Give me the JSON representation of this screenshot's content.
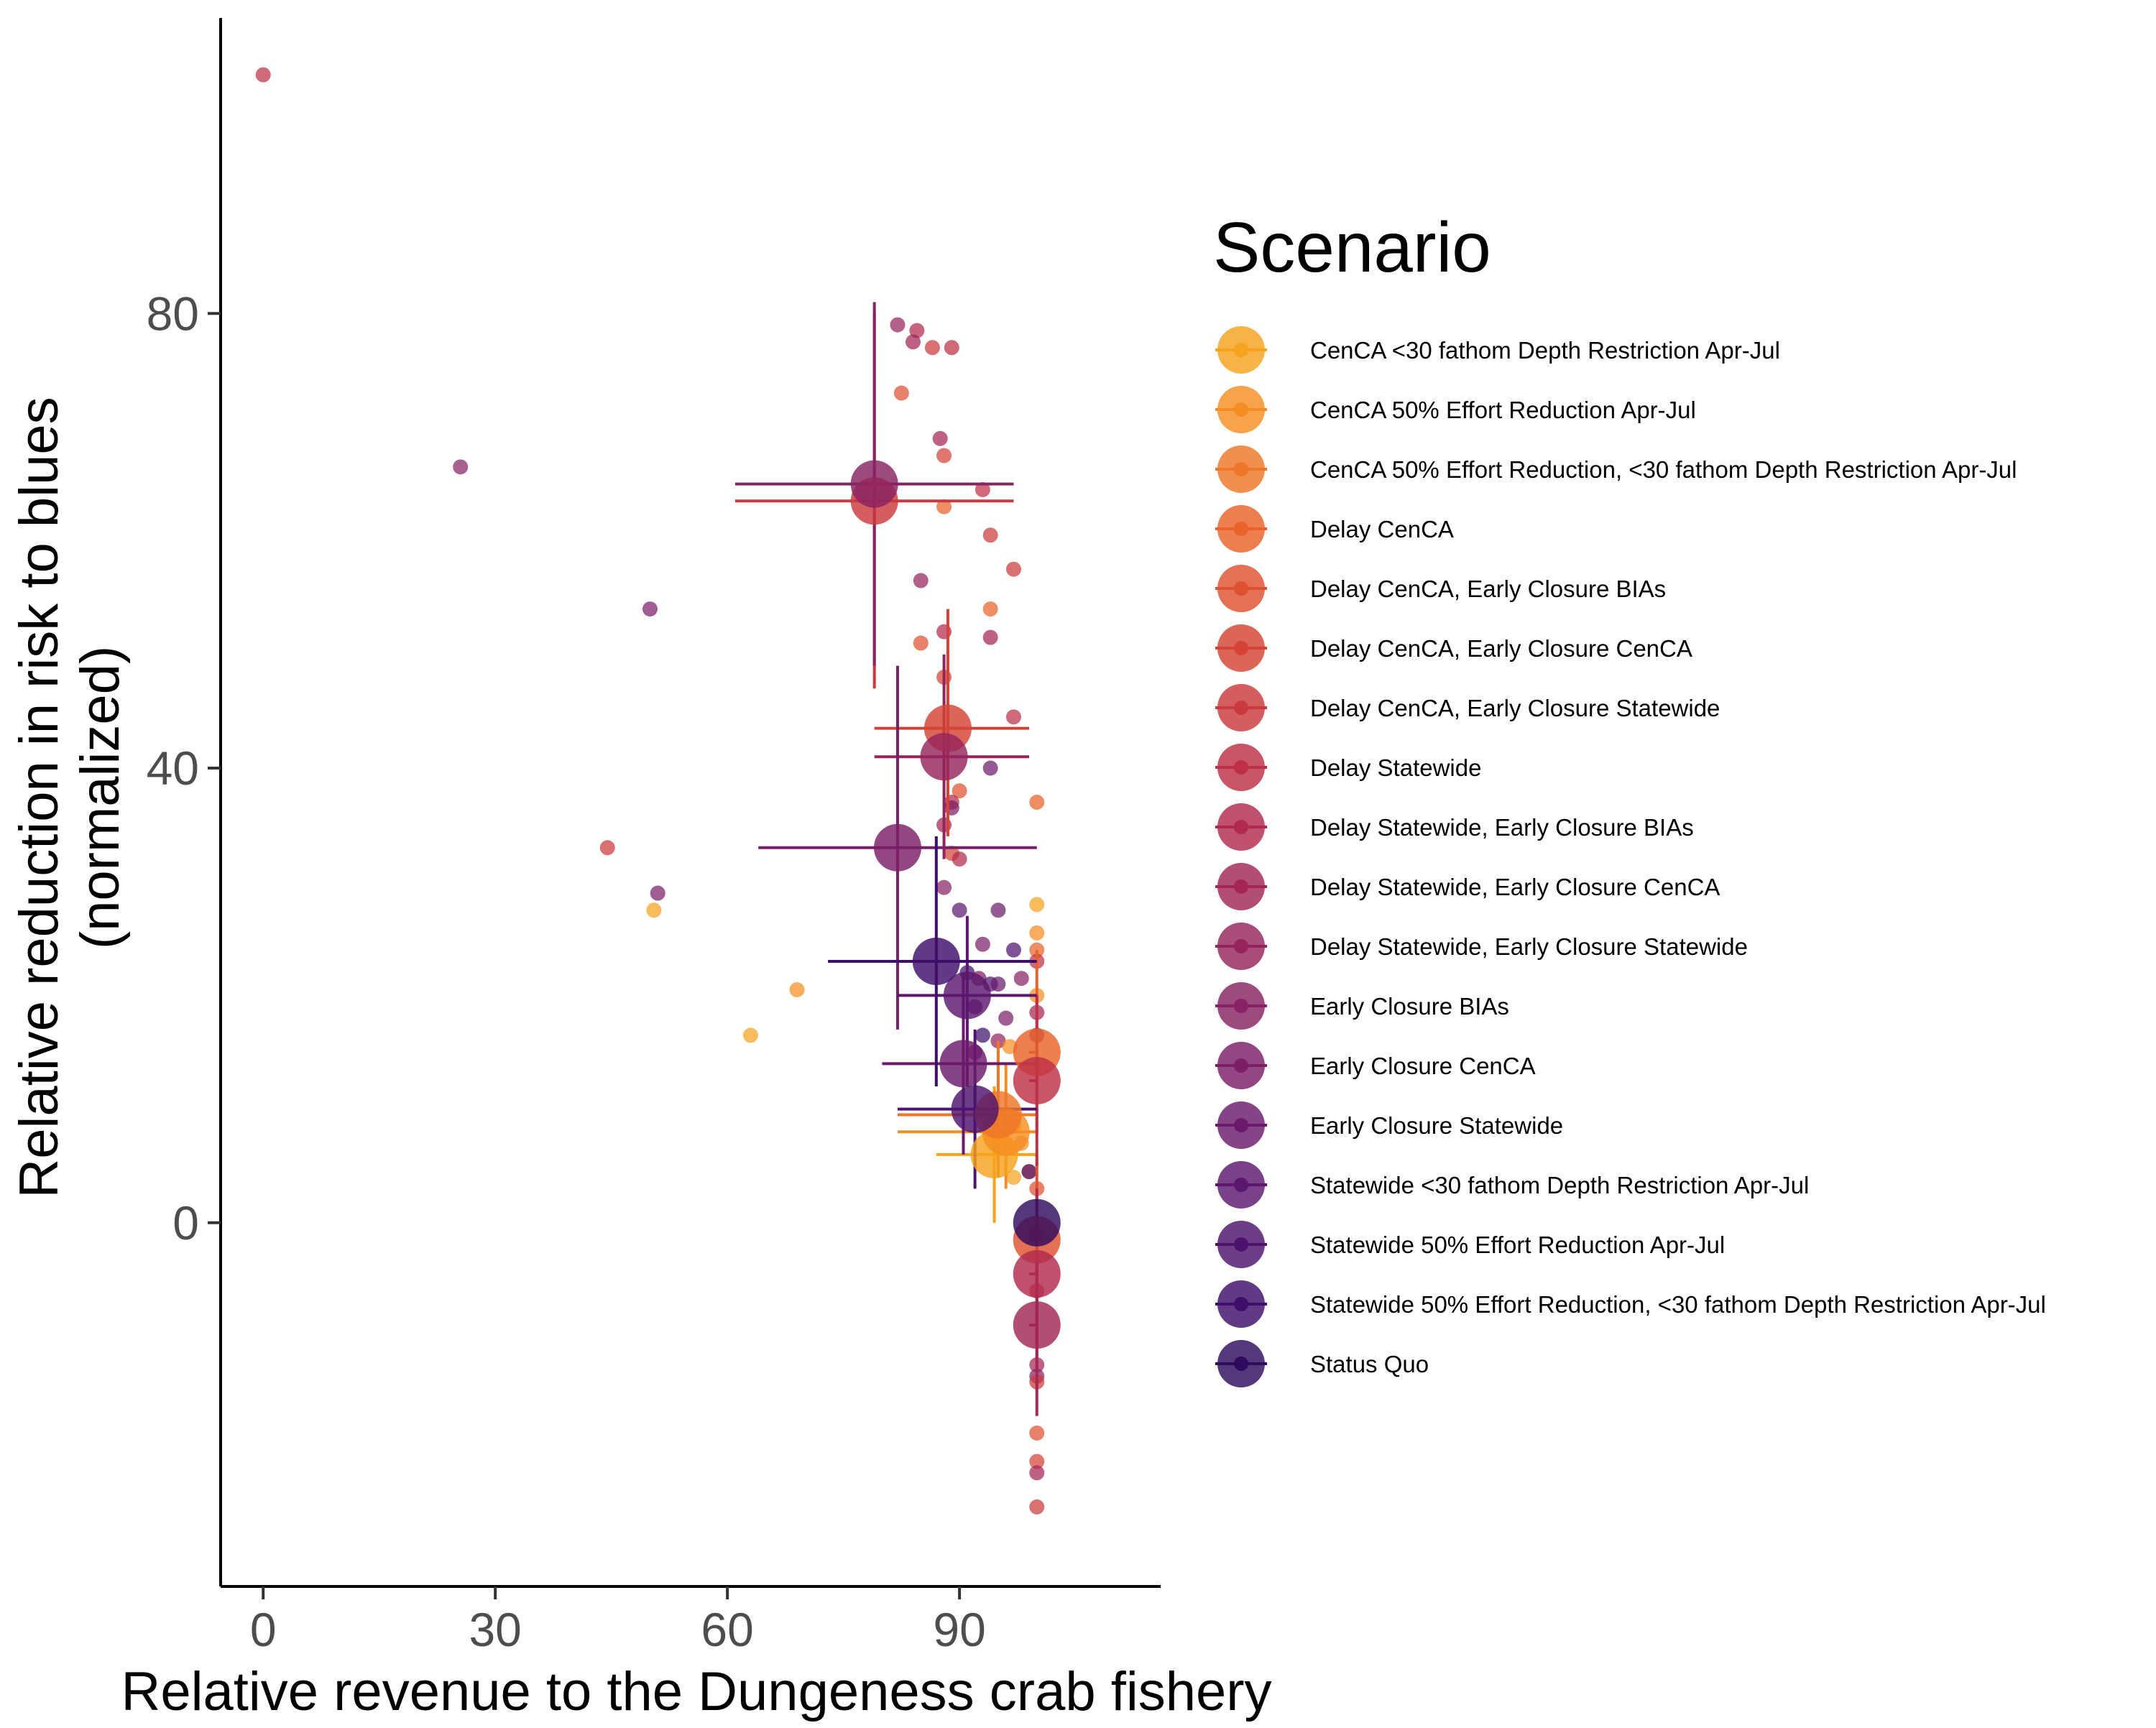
{
  "chart_data": {
    "type": "scatter",
    "xlabel": "Relative revenue to the Dungeness crab fishery",
    "ylabel": [
      "Relative reduction in risk to blues",
      "(normalized)"
    ],
    "xlim": [
      -5.5,
      116
    ],
    "ylim": [
      -32,
      106
    ],
    "x_ticks": [
      0,
      30,
      60,
      90
    ],
    "y_ticks": [
      0,
      40,
      80
    ],
    "grid": false,
    "legend": {
      "title": "Scenario",
      "placement": "right",
      "entries": [
        {
          "label": "CenCA <30 fathom Depth Restriction Apr-Jul",
          "color": "#f5a21d"
        },
        {
          "label": "CenCA 50% Effort Reduction Apr-Jul",
          "color": "#f68d22"
        },
        {
          "label": "CenCA 50% Effort Reduction, <30 fathom Depth Restriction Apr-Jul",
          "color": "#ee7628"
        },
        {
          "label": "Delay CenCA",
          "color": "#e8622a"
        },
        {
          "label": "Delay CenCA, Early Closure BIAs",
          "color": "#de5130"
        },
        {
          "label": "Delay CenCA, Early Closure CenCA",
          "color": "#d44336"
        },
        {
          "label": "Delay CenCA, Early Closure Statewide",
          "color": "#ca3a3c"
        },
        {
          "label": "Delay Statewide",
          "color": "#bd3045"
        },
        {
          "label": "Delay Statewide, Early Closure BIAs",
          "color": "#b12a4e"
        },
        {
          "label": "Delay Statewide, Early Closure CenCA",
          "color": "#a32656"
        },
        {
          "label": "Delay Statewide, Early Closure Statewide",
          "color": "#95245d"
        },
        {
          "label": "Early Closure BIAs",
          "color": "#872263"
        },
        {
          "label": "Early Closure CenCA",
          "color": "#7a1f68"
        },
        {
          "label": "Early Closure Statewide",
          "color": "#6b1a6b"
        },
        {
          "label": "Statewide <30 fathom Depth Restriction Apr-Jul",
          "color": "#5b176d"
        },
        {
          "label": "Statewide 50% Effort Reduction Apr-Jul",
          "color": "#4d126d"
        },
        {
          "label": "Statewide 50% Effort Reduction, <30 fathom Depth Restriction Apr-Jul",
          "color": "#3e0f6a"
        },
        {
          "label": "Status Quo",
          "color": "#2f0b5e"
        }
      ]
    },
    "summary_points": [
      {
        "series": 0,
        "x": 94.5,
        "y": 6,
        "xmin": 87,
        "xmax": 100,
        "ymin": 0,
        "ymax": 12
      },
      {
        "series": 1,
        "x": 96,
        "y": 8,
        "xmin": 82,
        "xmax": 100,
        "ymin": 3,
        "ymax": 14
      },
      {
        "series": 2,
        "x": 95,
        "y": 9.5,
        "xmin": 82,
        "xmax": 100,
        "ymin": 4,
        "ymax": 16
      },
      {
        "series": 3,
        "x": 100,
        "y": 15,
        "xmin": 99,
        "xmax": 100,
        "ymin": 8,
        "ymax": 24
      },
      {
        "series": 4,
        "x": 100,
        "y": -1.5,
        "xmin": 99,
        "xmax": 100,
        "ymin": -8,
        "ymax": 6
      },
      {
        "series": 5,
        "x": 88.5,
        "y": 43.5,
        "xmin": 79,
        "xmax": 99,
        "ymin": 34,
        "ymax": 54
      },
      {
        "series": 6,
        "x": 79,
        "y": 63.5,
        "xmin": 61,
        "xmax": 97,
        "ymin": 47,
        "ymax": 80
      },
      {
        "series": 7,
        "x": 100,
        "y": 12.5,
        "xmin": 99,
        "xmax": 100,
        "ymin": 5,
        "ymax": 20
      },
      {
        "series": 8,
        "x": 100,
        "y": -4.5,
        "xmin": 99,
        "xmax": 100,
        "ymin": -12,
        "ymax": 3
      },
      {
        "series": 9,
        "x": 100,
        "y": -9,
        "xmin": 99,
        "xmax": 100,
        "ymin": -17,
        "ymax": -1
      },
      {
        "series": 10,
        "x": 88,
        "y": 41,
        "xmin": 79,
        "xmax": 99,
        "ymin": 32,
        "ymax": 50
      },
      {
        "series": 11,
        "x": 79,
        "y": 65,
        "xmin": 61,
        "xmax": 97,
        "ymin": 49,
        "ymax": 81
      },
      {
        "series": 12,
        "x": 82,
        "y": 33,
        "xmin": 64,
        "xmax": 100,
        "ymin": 17,
        "ymax": 49
      },
      {
        "series": 13,
        "x": 90.5,
        "y": 14,
        "xmin": 80,
        "xmax": 100,
        "ymin": 6,
        "ymax": 22
      },
      {
        "series": 14,
        "x": 91,
        "y": 20,
        "xmin": 82,
        "xmax": 100,
        "ymin": 12,
        "ymax": 27
      },
      {
        "series": 15,
        "x": 92,
        "y": 10,
        "xmin": 82,
        "xmax": 100,
        "ymin": 3,
        "ymax": 17
      },
      {
        "series": 16,
        "x": 87,
        "y": 23,
        "xmin": 73,
        "xmax": 100,
        "ymin": 12,
        "ymax": 34
      },
      {
        "series": 17,
        "x": 100,
        "y": 0,
        "xmin": 100,
        "xmax": 100,
        "ymin": 0,
        "ymax": 0
      }
    ],
    "individual_points": [
      {
        "series": 7,
        "x": 0,
        "y": 101
      },
      {
        "series": 11,
        "x": 25.5,
        "y": 66.5
      },
      {
        "series": 12,
        "x": 50,
        "y": 54
      },
      {
        "series": 6,
        "x": 44.5,
        "y": 33
      },
      {
        "series": 12,
        "x": 51,
        "y": 29
      },
      {
        "series": 0,
        "x": 50.5,
        "y": 27.5
      },
      {
        "series": 0,
        "x": 63,
        "y": 16.5
      },
      {
        "series": 1,
        "x": 69,
        "y": 20.5
      },
      {
        "series": 10,
        "x": 82,
        "y": 79
      },
      {
        "series": 8,
        "x": 84.5,
        "y": 78.5
      },
      {
        "series": 9,
        "x": 84,
        "y": 77.5
      },
      {
        "series": 6,
        "x": 86.5,
        "y": 77
      },
      {
        "series": 7,
        "x": 89,
        "y": 77
      },
      {
        "series": 4,
        "x": 82.5,
        "y": 73
      },
      {
        "series": 9,
        "x": 87.5,
        "y": 69
      },
      {
        "series": 5,
        "x": 88,
        "y": 67.5
      },
      {
        "series": 7,
        "x": 93,
        "y": 64.5
      },
      {
        "series": 3,
        "x": 88,
        "y": 63
      },
      {
        "series": 6,
        "x": 94,
        "y": 60.5
      },
      {
        "series": 6,
        "x": 97,
        "y": 57.5
      },
      {
        "series": 10,
        "x": 85,
        "y": 56.5
      },
      {
        "series": 3,
        "x": 94,
        "y": 54
      },
      {
        "series": 8,
        "x": 88,
        "y": 52
      },
      {
        "series": 9,
        "x": 94,
        "y": 51.5
      },
      {
        "series": 4,
        "x": 85,
        "y": 51
      },
      {
        "series": 5,
        "x": 88,
        "y": 48
      },
      {
        "series": 7,
        "x": 97,
        "y": 44.5
      },
      {
        "series": 13,
        "x": 94,
        "y": 40
      },
      {
        "series": 4,
        "x": 90,
        "y": 38
      },
      {
        "series": 8,
        "x": 89,
        "y": 37
      },
      {
        "series": 12,
        "x": 89,
        "y": 36.5
      },
      {
        "series": 3,
        "x": 100,
        "y": 37
      },
      {
        "series": 9,
        "x": 88,
        "y": 35
      },
      {
        "series": 5,
        "x": 89,
        "y": 32.5
      },
      {
        "series": 8,
        "x": 90,
        "y": 32
      },
      {
        "series": 11,
        "x": 88,
        "y": 29.5
      },
      {
        "series": 0,
        "x": 100,
        "y": 28
      },
      {
        "series": 14,
        "x": 90,
        "y": 27.5
      },
      {
        "series": 13,
        "x": 95,
        "y": 27.5
      },
      {
        "series": 1,
        "x": 100,
        "y": 25.5
      },
      {
        "series": 12,
        "x": 93,
        "y": 24.5
      },
      {
        "series": 15,
        "x": 97,
        "y": 24
      },
      {
        "series": 3,
        "x": 100,
        "y": 24
      },
      {
        "series": 7,
        "x": 100,
        "y": 23
      },
      {
        "series": 16,
        "x": 91,
        "y": 22
      },
      {
        "series": 12,
        "x": 92.5,
        "y": 21.5
      },
      {
        "series": 15,
        "x": 94,
        "y": 21
      },
      {
        "series": 13,
        "x": 95,
        "y": 21
      },
      {
        "series": 11,
        "x": 98,
        "y": 21.5
      },
      {
        "series": 14,
        "x": 92,
        "y": 19
      },
      {
        "series": 1,
        "x": 100,
        "y": 20
      },
      {
        "series": 9,
        "x": 100,
        "y": 18.5
      },
      {
        "series": 12,
        "x": 96,
        "y": 18
      },
      {
        "series": 16,
        "x": 93,
        "y": 16.5
      },
      {
        "series": 10,
        "x": 95,
        "y": 16
      },
      {
        "series": 1,
        "x": 96.5,
        "y": 15.5
      },
      {
        "series": 11,
        "x": 100,
        "y": 16.5
      },
      {
        "series": 12,
        "x": 92,
        "y": 15
      },
      {
        "series": 0,
        "x": 97,
        "y": 8.5
      },
      {
        "series": 1,
        "x": 98,
        "y": 7
      },
      {
        "series": 0,
        "x": 97,
        "y": 4
      },
      {
        "series": 2,
        "x": 99,
        "y": 4.5
      },
      {
        "series": 15,
        "x": 99,
        "y": 4.5
      },
      {
        "series": 4,
        "x": 100,
        "y": 3
      },
      {
        "series": 8,
        "x": 100,
        "y": -1
      },
      {
        "series": 6,
        "x": 100,
        "y": -6
      },
      {
        "series": 9,
        "x": 100,
        "y": -12.5
      },
      {
        "series": 11,
        "x": 100,
        "y": -13.5
      },
      {
        "series": 6,
        "x": 100,
        "y": -14
      },
      {
        "series": 4,
        "x": 100,
        "y": -18.5
      },
      {
        "series": 5,
        "x": 100,
        "y": -21
      },
      {
        "series": 9,
        "x": 100,
        "y": -22
      },
      {
        "series": 6,
        "x": 100,
        "y": -25
      }
    ]
  }
}
